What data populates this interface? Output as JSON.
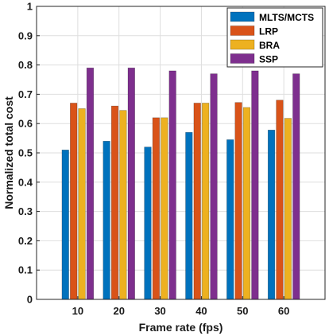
{
  "chart_data": {
    "type": "bar",
    "title": "",
    "xlabel": "Frame rate (fps)",
    "ylabel": "Normalized total cost",
    "categories": [
      "10",
      "20",
      "30",
      "40",
      "50",
      "60"
    ],
    "ylim": [
      0,
      1
    ],
    "yticks": [
      "0",
      "0.1",
      "0.2",
      "0.3",
      "0.4",
      "0.5",
      "0.6",
      "0.7",
      "0.8",
      "0.9",
      "1"
    ],
    "grid": true,
    "legend_position": "top-right",
    "series": [
      {
        "name": "MLTS/MCTS",
        "color": "#0072BD",
        "values": [
          0.51,
          0.54,
          0.52,
          0.57,
          0.545,
          0.578
        ]
      },
      {
        "name": "LRP",
        "color": "#D95319",
        "values": [
          0.67,
          0.66,
          0.62,
          0.67,
          0.672,
          0.68
        ]
      },
      {
        "name": "BRA",
        "color": "#EDB120",
        "values": [
          0.651,
          0.645,
          0.62,
          0.67,
          0.655,
          0.618
        ]
      },
      {
        "name": "SSP",
        "color": "#7E2F8E",
        "values": [
          0.79,
          0.79,
          0.78,
          0.77,
          0.78,
          0.77
        ]
      }
    ]
  }
}
